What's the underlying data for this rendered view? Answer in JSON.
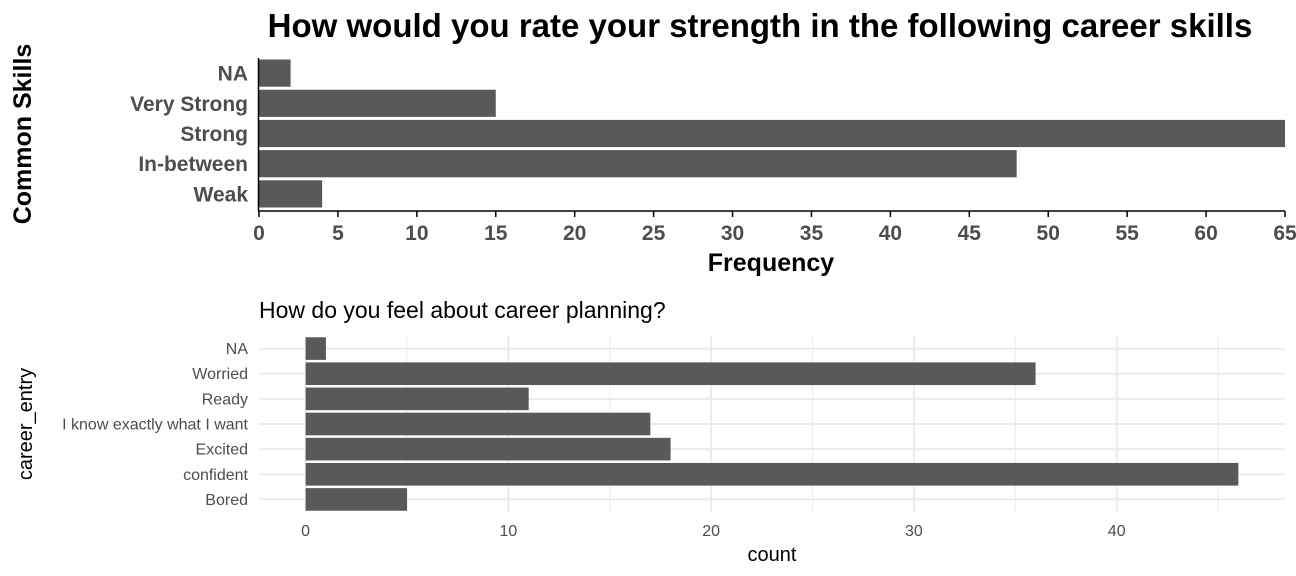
{
  "chart_data": [
    {
      "type": "bar",
      "orientation": "horizontal",
      "title": "How would you rate your strength  in the following career skills",
      "xlabel": "Frequency",
      "ylabel": "Common Skills",
      "categories": [
        "NA",
        "Very Strong",
        "Strong",
        "In-between",
        "Weak"
      ],
      "values": [
        2,
        15,
        65,
        48,
        4
      ],
      "xlim": [
        0,
        65
      ],
      "xticks": [
        0,
        5,
        10,
        15,
        20,
        25,
        30,
        35,
        40,
        45,
        50,
        55,
        60,
        65
      ],
      "grid": false,
      "bar_color": "#595959"
    },
    {
      "type": "bar",
      "orientation": "horizontal",
      "title": "How do you feel about career  planning?",
      "xlabel": "count",
      "ylabel": "career_entry",
      "categories": [
        "NA",
        "Worried",
        "Ready",
        "I know exactly what I want",
        "Excited",
        "confident",
        "Bored"
      ],
      "values": [
        1,
        36,
        11,
        17,
        18,
        46,
        5
      ],
      "xlim": [
        -2.3,
        48.3
      ],
      "xticks": [
        0,
        10,
        20,
        30,
        40
      ],
      "grid": true,
      "bar_color": "#595959",
      "grid_color": "#ebebeb"
    }
  ]
}
